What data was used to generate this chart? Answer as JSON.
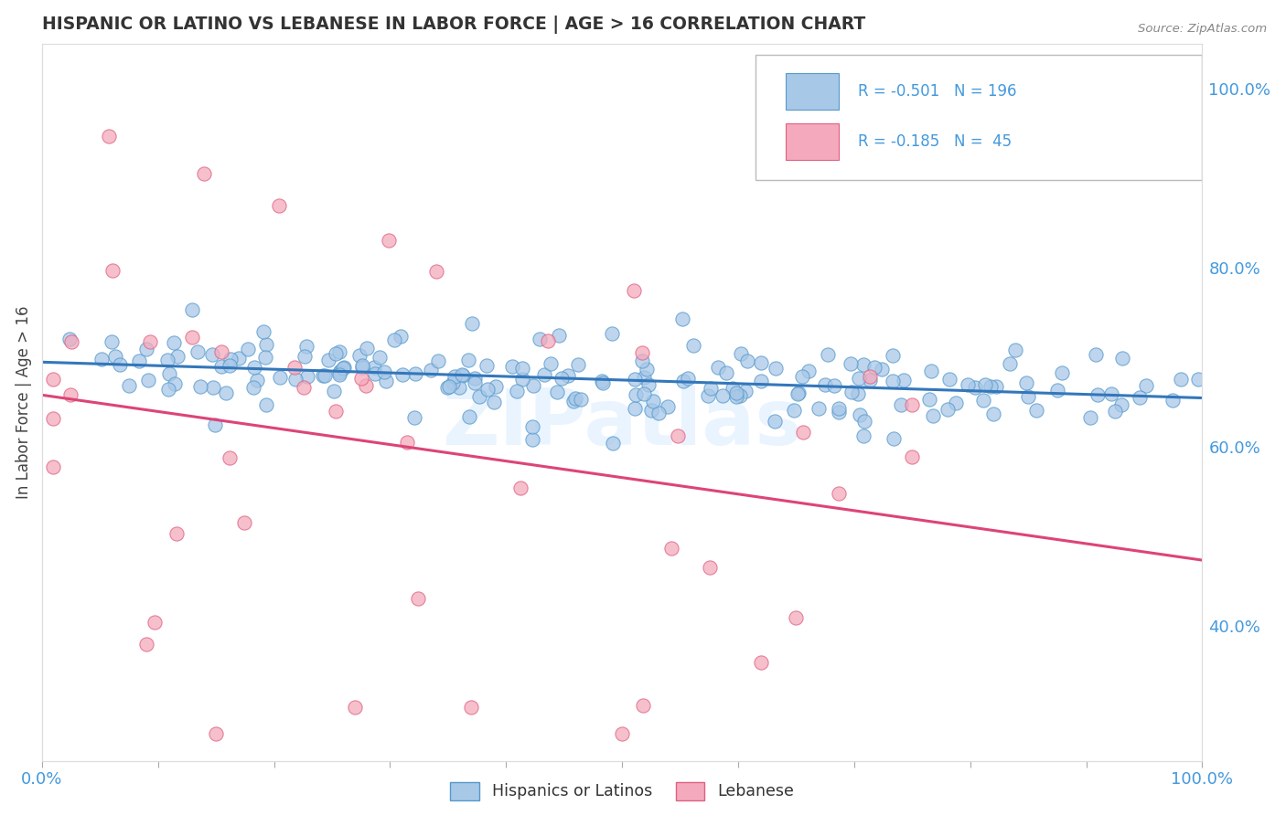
{
  "title": "HISPANIC OR LATINO VS LEBANESE IN LABOR FORCE | AGE > 16 CORRELATION CHART",
  "source": "Source: ZipAtlas.com",
  "ylabel": "In Labor Force | Age > 16",
  "series1_label": "Hispanics or Latinos",
  "series2_label": "Lebanese",
  "series1_R": "-0.501",
  "series1_N": "196",
  "series2_R": "-0.185",
  "series2_N": "45",
  "series1_color": "#a8c8e8",
  "series1_edge": "#5599cc",
  "series2_color": "#f4aabc",
  "series2_edge": "#e06080",
  "trend1_color": "#3377bb",
  "trend2_color": "#dd4477",
  "watermark": "ZIPatlas",
  "bg_color": "#ffffff",
  "grid_color": "#cccccc",
  "axis_color": "#4499dd",
  "title_color": "#333333",
  "xlim": [
    0.0,
    1.0
  ],
  "ylim": [
    0.25,
    1.05
  ],
  "right_yticks": [
    0.4,
    0.6,
    0.8,
    1.0
  ],
  "right_yticklabels": [
    "40.0%",
    "60.0%",
    "80.0%",
    "100.0%"
  ]
}
